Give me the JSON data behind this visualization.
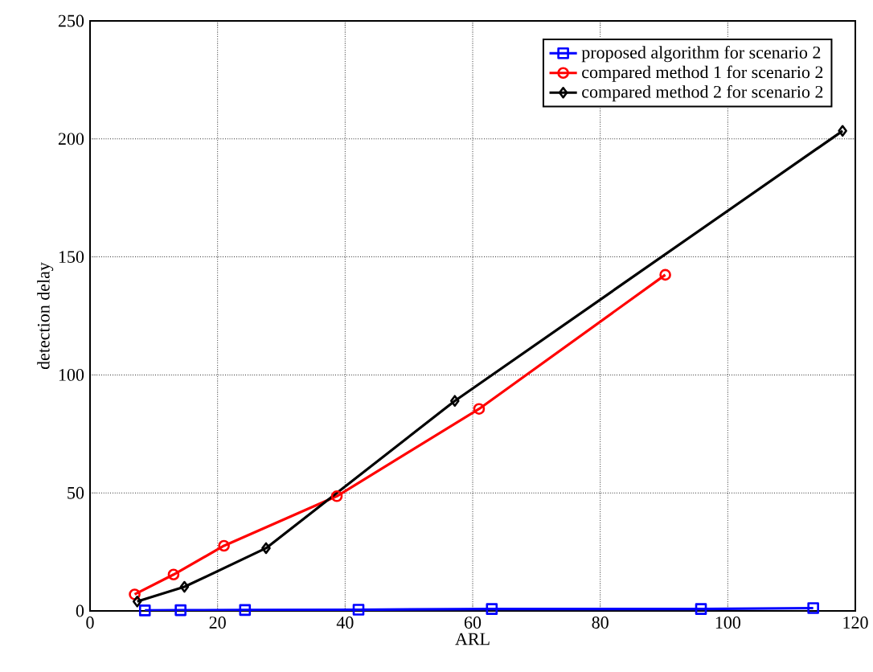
{
  "chart_data": {
    "type": "line",
    "xlabel": "ARL",
    "ylabel": "detection delay",
    "xlim": [
      0,
      120
    ],
    "xticks": [
      0,
      20,
      40,
      60,
      80,
      100,
      120
    ],
    "ylim": [
      0,
      250
    ],
    "yticks": [
      0,
      50,
      100,
      150,
      200,
      250
    ],
    "grid": true,
    "legend": "top right",
    "line_style": "solid",
    "series": [
      {
        "name": "proposed algorithm for scenario 2",
        "color": "#0000ff",
        "marker": "square",
        "x": [
          8.6,
          14.2,
          24.3,
          42.1,
          63,
          95.8,
          113.4
        ],
        "values": [
          0.2,
          0.3,
          0.4,
          0.5,
          0.8,
          0.8,
          1.2
        ]
      },
      {
        "name": "compared method 1 for scenario 2",
        "color": "#ff0000",
        "marker": "circle",
        "x": [
          7.0,
          13.1,
          21,
          38.7,
          61,
          90.2
        ],
        "values": [
          7,
          15.4,
          27.6,
          48.6,
          85.6,
          142.4
        ]
      },
      {
        "name": "compared method 2 for scenario 2",
        "color": "#000000",
        "marker": "diamond",
        "x": [
          7.4,
          14.8,
          27.6,
          57.2,
          118
        ],
        "values": [
          4,
          10.2,
          26.6,
          89,
          203.4
        ]
      }
    ]
  }
}
